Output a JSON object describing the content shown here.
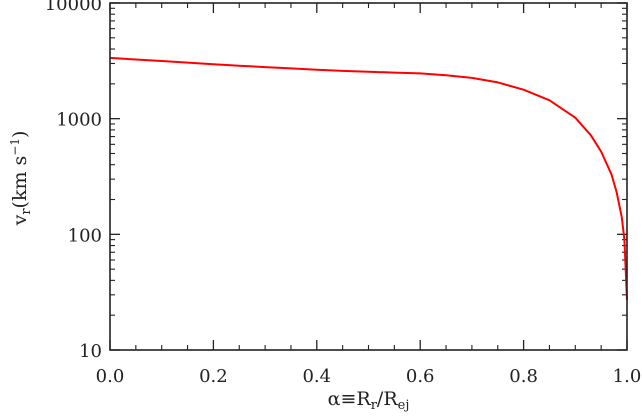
{
  "chart_data": {
    "type": "line",
    "x_axis": {
      "label": {
        "greek": "α",
        "equiv": "≡",
        "num": "R",
        "num_sub": "r",
        "slash": "/",
        "den": "R",
        "den_sub": "ej"
      },
      "range": [
        0.0,
        1.0
      ],
      "scale": "linear",
      "ticks": [
        0.0,
        0.2,
        0.4,
        0.6,
        0.8,
        1.0
      ],
      "tick_labels": [
        "0.0",
        "0.2",
        "0.4",
        "0.6",
        "0.8",
        "1.0"
      ],
      "minor_ticks": [
        0.05,
        0.1,
        0.15,
        0.25,
        0.3,
        0.35,
        0.45,
        0.5,
        0.55,
        0.65,
        0.7,
        0.75,
        0.85,
        0.9,
        0.95
      ]
    },
    "y_axis": {
      "label": {
        "main": "v",
        "sub": "r",
        "unit_open": "(km s",
        "sup": "−1",
        "unit_close": ")"
      },
      "range": [
        10,
        10000
      ],
      "scale": "log",
      "ticks": [
        10,
        100,
        1000,
        10000
      ],
      "tick_labels": [
        "10",
        "100",
        "1000",
        "10000"
      ]
    },
    "grid": false,
    "legend": "none",
    "series": [
      {
        "color": "#ff0000",
        "x": [
          0.0,
          0.05,
          0.1,
          0.15,
          0.2,
          0.25,
          0.3,
          0.35,
          0.4,
          0.45,
          0.5,
          0.55,
          0.6,
          0.62,
          0.65,
          0.7,
          0.75,
          0.8,
          0.85,
          0.9,
          0.93,
          0.95,
          0.97,
          0.98,
          0.99,
          0.995,
          1.0
        ],
        "y": [
          3350,
          3250,
          3150,
          3050,
          2950,
          2870,
          2790,
          2720,
          2650,
          2590,
          2540,
          2500,
          2460,
          2430,
          2370,
          2250,
          2060,
          1780,
          1440,
          1020,
          720,
          520,
          330,
          230,
          140,
          90,
          27
        ]
      }
    ]
  }
}
